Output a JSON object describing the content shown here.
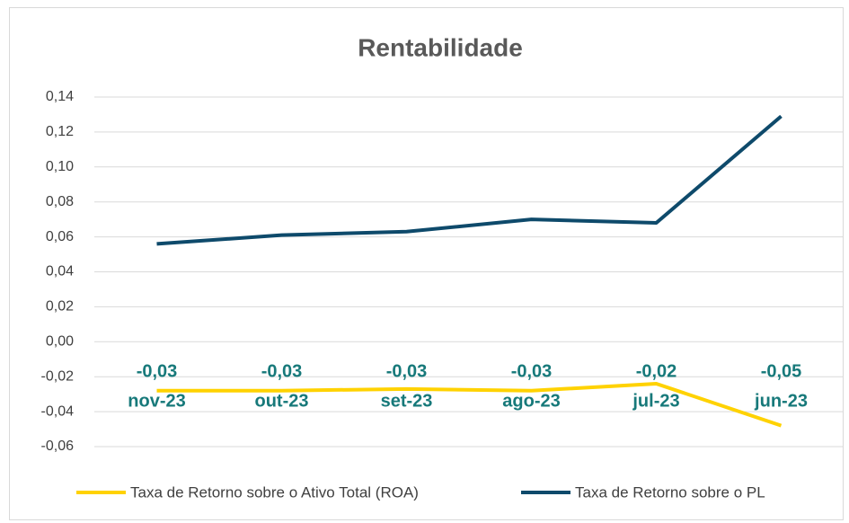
{
  "chart_data": {
    "type": "line",
    "title": "Rentabilidade",
    "categories": [
      "nov-23",
      "out-23",
      "set-23",
      "ago-23",
      "jul-23",
      "jun-23"
    ],
    "series": [
      {
        "name": "Taxa de Retorno sobre o Ativo Total (ROA)",
        "color": "#ffd200",
        "values": [
          -0.028,
          -0.028,
          -0.027,
          -0.028,
          -0.024,
          -0.048
        ],
        "value_labels": [
          "-0,03",
          "-0,03",
          "-0,03",
          "-0,03",
          "-0,02",
          "-0,05"
        ]
      },
      {
        "name": "Taxa de Retorno sobre o PL",
        "color": "#0e4a6b",
        "values": [
          0.056,
          0.061,
          0.063,
          0.07,
          0.068,
          0.129
        ]
      }
    ],
    "ylim": [
      -0.06,
      0.14
    ],
    "yticks": [
      {
        "value": -0.06,
        "label": "-0,06"
      },
      {
        "value": -0.04,
        "label": "-0,04"
      },
      {
        "value": -0.02,
        "label": "-0,02"
      },
      {
        "value": 0,
        "label": "0,00"
      },
      {
        "value": 0.02,
        "label": "0,02"
      },
      {
        "value": 0.04,
        "label": "0,04"
      },
      {
        "value": 0.06,
        "label": "0,06"
      },
      {
        "value": 0.08,
        "label": "0,08"
      },
      {
        "value": 0.1,
        "label": "0,10"
      },
      {
        "value": 0.12,
        "label": "0,12"
      },
      {
        "value": 0.14,
        "label": "0,14"
      }
    ],
    "grid": true,
    "legend": "bottom"
  }
}
